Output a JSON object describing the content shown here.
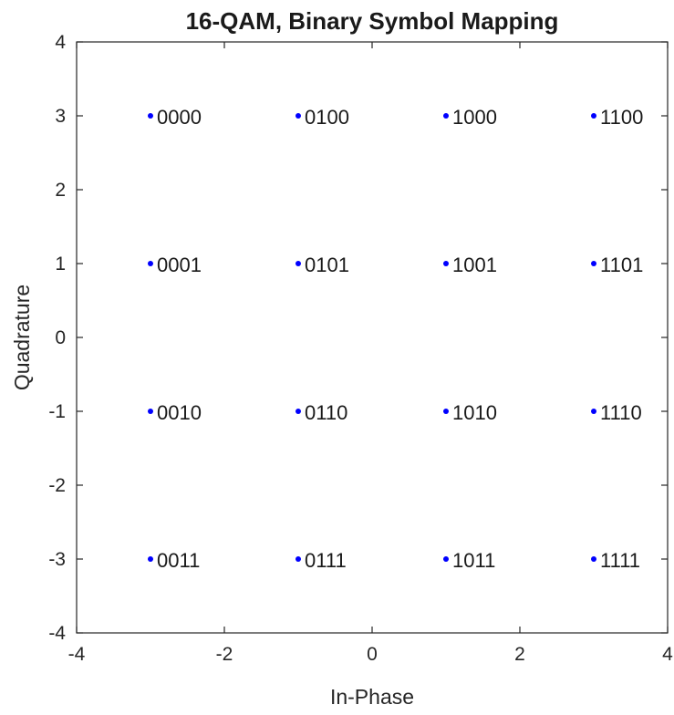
{
  "chart_data": {
    "type": "scatter",
    "title": "16-QAM, Binary Symbol Mapping",
    "xlabel": "In-Phase",
    "ylabel": "Quadrature",
    "xlim": [
      -4,
      4
    ],
    "ylim": [
      -4,
      4
    ],
    "xticks": [
      "-4",
      "-2",
      "0",
      "2",
      "4"
    ],
    "yticks": [
      "-4",
      "-3",
      "-2",
      "-1",
      "0",
      "1",
      "2",
      "3",
      "4"
    ],
    "grid": false,
    "marker_color": "#0000ff",
    "points": [
      {
        "x": -3,
        "y": 3,
        "label": "0000"
      },
      {
        "x": -3,
        "y": 1,
        "label": "0001"
      },
      {
        "x": -3,
        "y": -1,
        "label": "0010"
      },
      {
        "x": -3,
        "y": -3,
        "label": "0011"
      },
      {
        "x": -1,
        "y": 3,
        "label": "0100"
      },
      {
        "x": -1,
        "y": 1,
        "label": "0101"
      },
      {
        "x": -1,
        "y": -1,
        "label": "0110"
      },
      {
        "x": -1,
        "y": -3,
        "label": "0111"
      },
      {
        "x": 1,
        "y": 3,
        "label": "1000"
      },
      {
        "x": 1,
        "y": 1,
        "label": "1001"
      },
      {
        "x": 1,
        "y": -1,
        "label": "1010"
      },
      {
        "x": 1,
        "y": -3,
        "label": "1011"
      },
      {
        "x": 3,
        "y": 3,
        "label": "1100"
      },
      {
        "x": 3,
        "y": 1,
        "label": "1101"
      },
      {
        "x": 3,
        "y": -1,
        "label": "1110"
      },
      {
        "x": 3,
        "y": -3,
        "label": "1111"
      }
    ]
  }
}
